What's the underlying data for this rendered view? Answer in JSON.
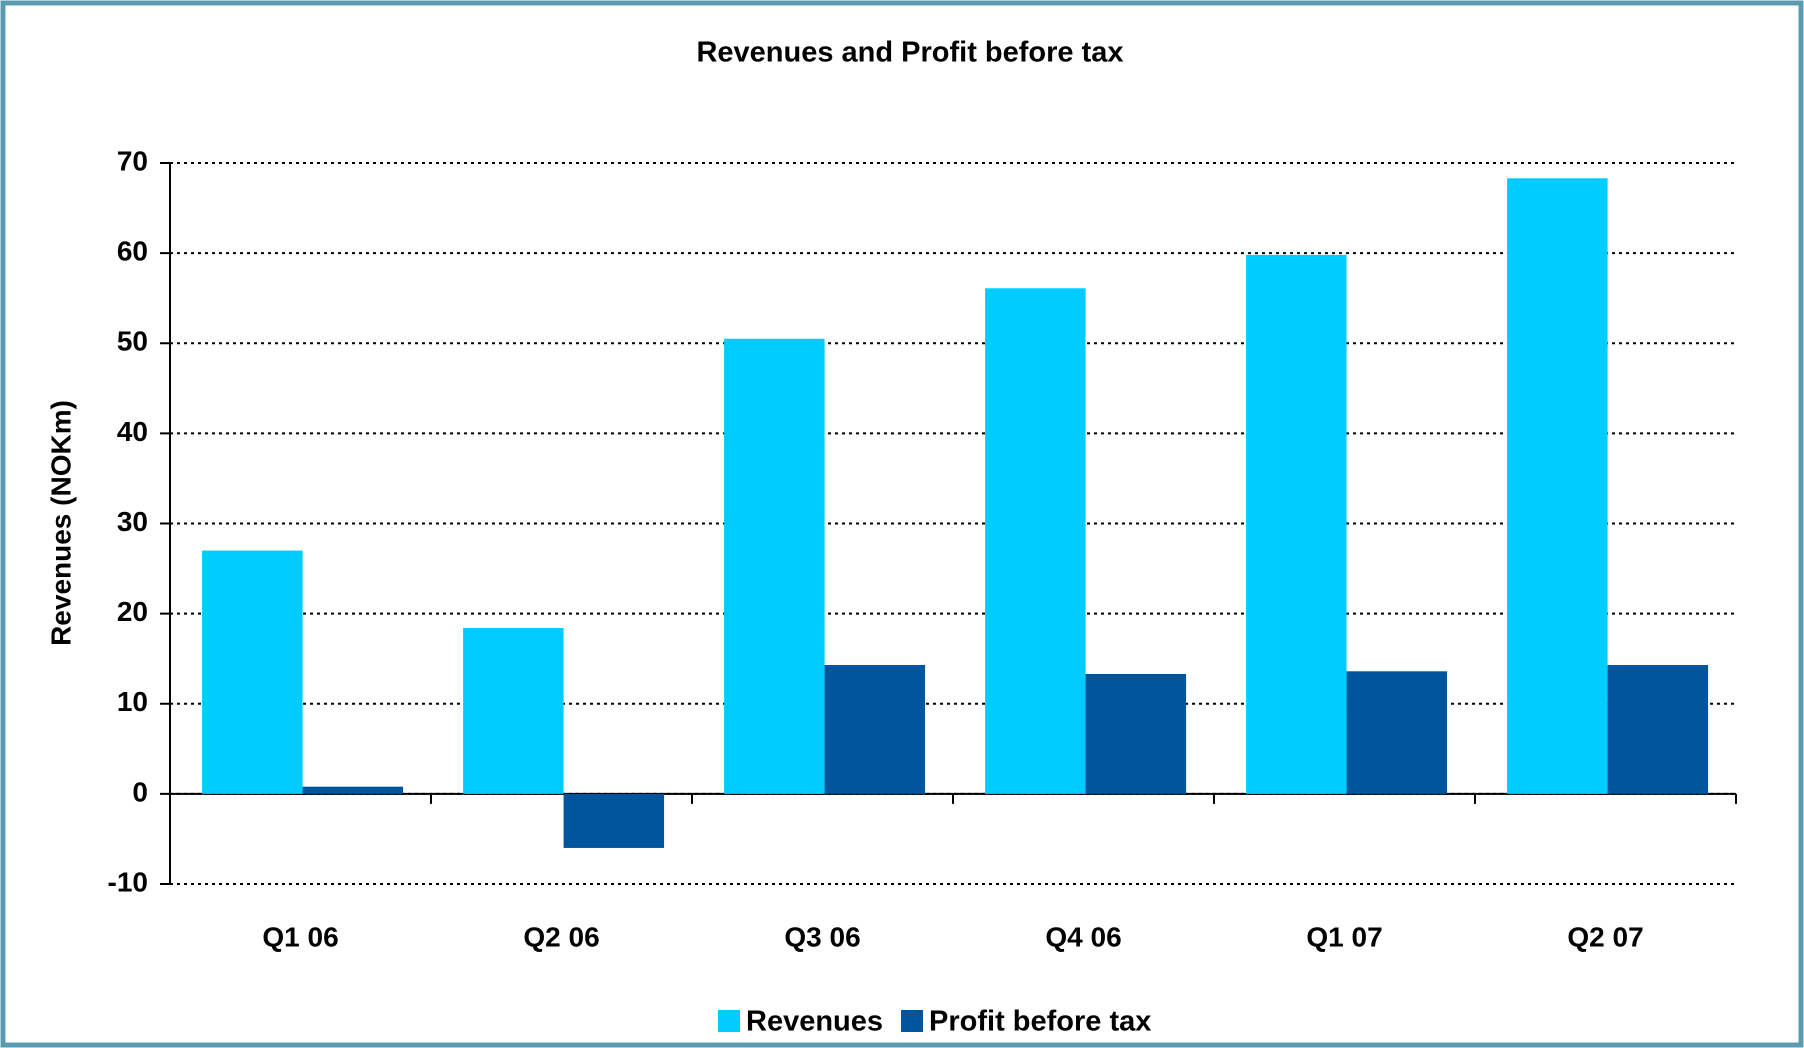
{
  "chart_data": {
    "type": "bar",
    "title": "Revenues and Profit before tax",
    "y_label": "Revenues (NOKm)",
    "categories": [
      "Q1 06",
      "Q2 06",
      "Q3 06",
      "Q4 06",
      "Q1 07",
      "Q2 07"
    ],
    "series": [
      {
        "name": "Revenues",
        "color": "#00ccff",
        "values": [
          27,
          18.4,
          50.5,
          56.1,
          59.8,
          68.3
        ]
      },
      {
        "name": "Profit before tax",
        "color": "#01559d",
        "values": [
          0.8,
          -6.0,
          14.3,
          13.3,
          13.6,
          14.3
        ]
      }
    ],
    "ylim": [
      -10,
      70
    ],
    "yticks": [
      -10,
      0,
      10,
      20,
      30,
      40,
      50,
      60,
      70
    ],
    "grid": true,
    "legend": "bottom"
  }
}
